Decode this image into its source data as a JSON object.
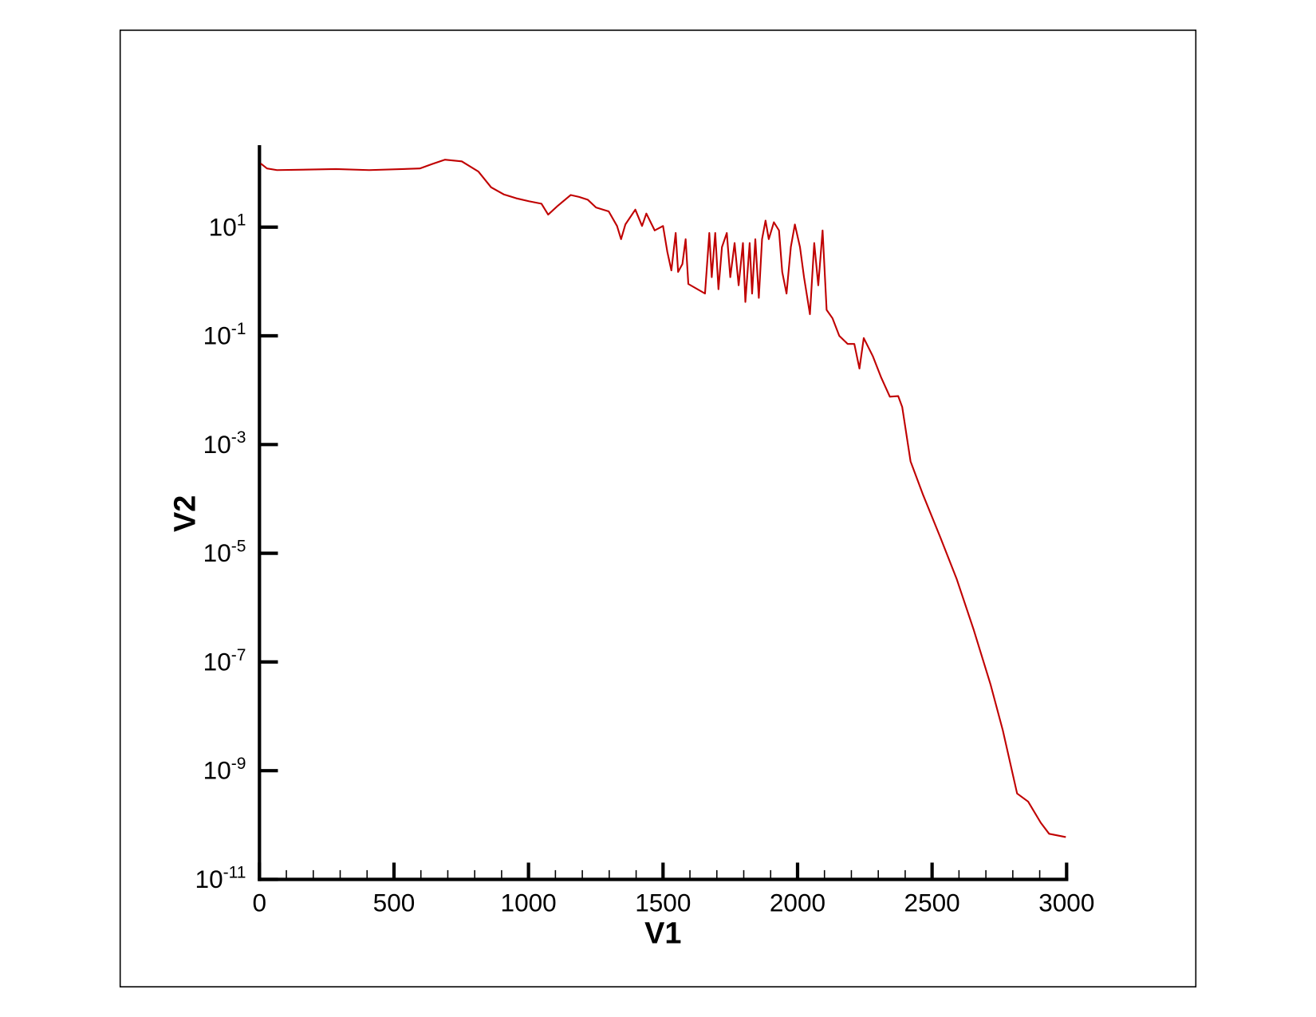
{
  "chart_data": {
    "type": "line",
    "xlabel": "V1",
    "ylabel": "V2",
    "log_y": true,
    "xlim": [
      0,
      3000
    ],
    "ylim": [
      1e-11,
      300
    ],
    "xticks": [
      0,
      500,
      1000,
      1500,
      2000,
      2500,
      3000
    ],
    "xminor_ticks": [
      100,
      200,
      300,
      400,
      600,
      700,
      800,
      900,
      1100,
      1200,
      1300,
      1400,
      1600,
      1700,
      1800,
      1900,
      2100,
      2200,
      2300,
      2400,
      2600,
      2700,
      2800,
      2900
    ],
    "yticks": [
      {
        "value": 10,
        "label": "10",
        "sup": "1"
      },
      {
        "value": 0.1,
        "label": "10",
        "sup": "-1"
      },
      {
        "value": 0.001,
        "label": "10",
        "sup": "-3"
      },
      {
        "value": 1e-05,
        "label": "10",
        "sup": "-5"
      },
      {
        "value": 1e-07,
        "label": "10",
        "sup": "-7"
      },
      {
        "value": 1e-09,
        "label": "10",
        "sup": "-9"
      },
      {
        "value": 1e-11,
        "label": "10",
        "sup": "-11"
      }
    ],
    "series": [
      {
        "color": "#c00000",
        "x": [
          5,
          28,
          65,
          284,
          408,
          596,
          642,
          689,
          752,
          814,
          861,
          908,
          954,
          1001,
          1048,
          1073,
          1110,
          1157,
          1188,
          1220,
          1251,
          1298,
          1329,
          1344,
          1360,
          1397,
          1422,
          1438,
          1469,
          1500,
          1516,
          1531,
          1547,
          1556,
          1572,
          1584,
          1594,
          1656,
          1672,
          1681,
          1694,
          1706,
          1719,
          1737,
          1750,
          1766,
          1781,
          1797,
          1806,
          1822,
          1831,
          1843,
          1856,
          1868,
          1881,
          1893,
          1912,
          1931,
          1943,
          1959,
          1975,
          1990,
          2009,
          2024,
          2046,
          2062,
          2077,
          2093,
          2108,
          2130,
          2155,
          2186,
          2211,
          2230,
          2246,
          2280,
          2311,
          2343,
          2374,
          2389,
          2420,
          2467,
          2530,
          2592,
          2654,
          2717,
          2763,
          2816,
          2857,
          2904,
          2935,
          2997
        ],
        "values": [
          148,
          120,
          112,
          117,
          112,
          120,
          145,
          174,
          162,
          105,
          54,
          40,
          34,
          30,
          27,
          17,
          25,
          39,
          36,
          32,
          23,
          19.5,
          10.5,
          6,
          11.2,
          21,
          10.5,
          17.8,
          8.7,
          10.5,
          3.5,
          1.6,
          7.8,
          1.5,
          2.1,
          6,
          0.9,
          0.6,
          7.8,
          1.2,
          7.8,
          0.72,
          4.3,
          7.8,
          1.2,
          5.1,
          0.85,
          5.1,
          0.42,
          5.1,
          0.6,
          6,
          0.5,
          6,
          13.2,
          6,
          12.3,
          8.7,
          1.5,
          0.6,
          4.3,
          11.2,
          4.3,
          1.2,
          0.25,
          5.1,
          0.85,
          8.7,
          0.3,
          0.21,
          0.1,
          0.071,
          0.071,
          0.025,
          0.091,
          0.042,
          0.017,
          0.0076,
          0.0078,
          0.0049,
          0.00049,
          0.000117,
          2e-05,
          3.3e-06,
          4e-07,
          3.9e-08,
          5.5e-09,
          3.8e-10,
          2.7e-10,
          1.1e-10,
          6.9e-11,
          6e-11
        ]
      }
    ]
  }
}
